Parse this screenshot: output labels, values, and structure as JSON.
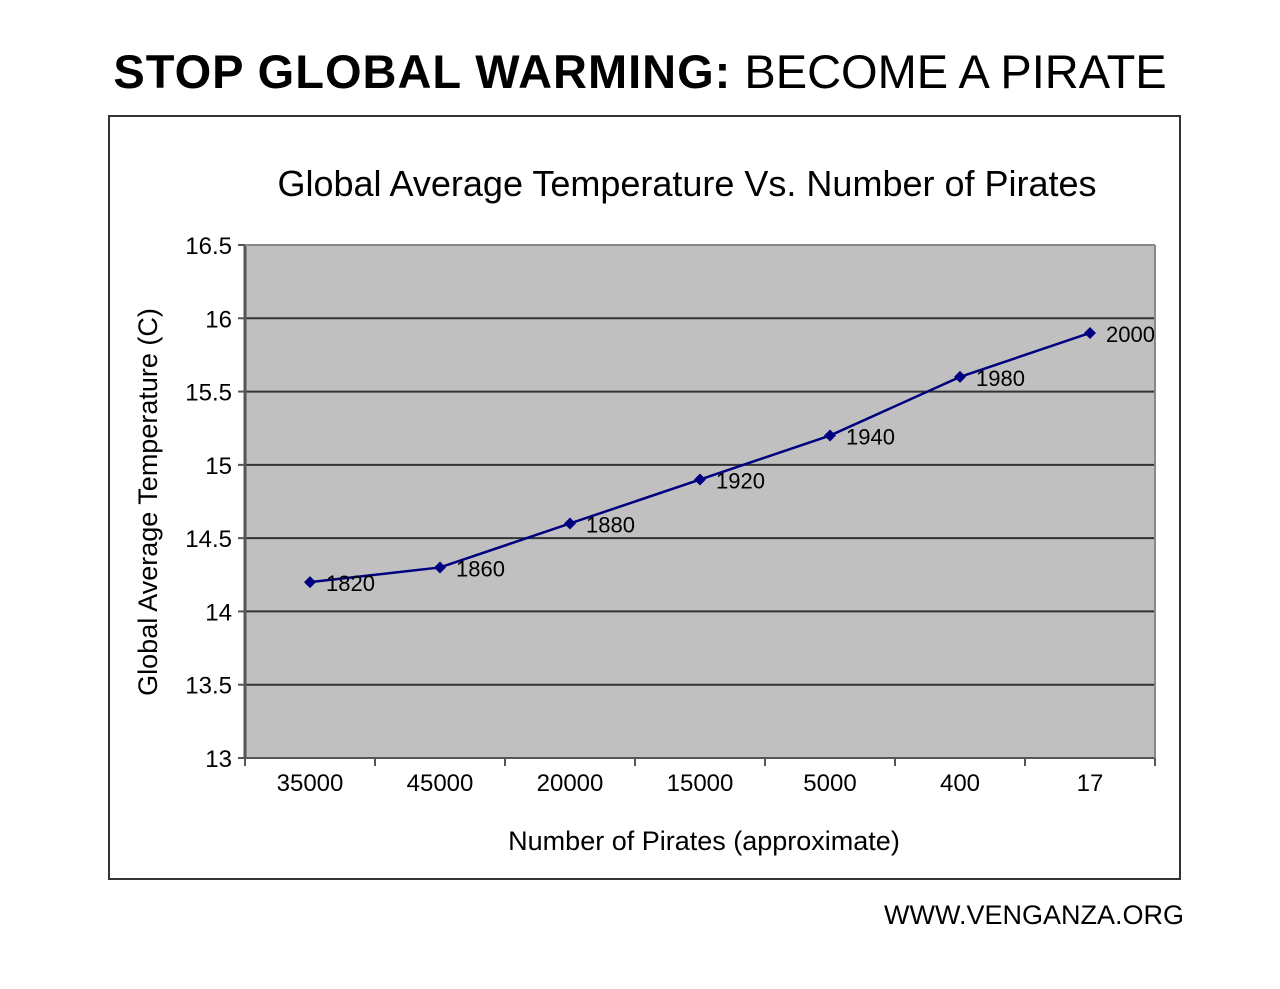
{
  "headline": {
    "bold": "STOP GLOBAL WARMING:",
    "regular": " BECOME A PIRATE"
  },
  "footer": "WWW.VENGANZA.ORG",
  "chart_data": {
    "type": "line",
    "title": "Global Average Temperature Vs. Number of Pirates",
    "xlabel": "Number of Pirates (approximate)",
    "ylabel": "Global Average Temperature (C)",
    "categories": [
      "35000",
      "45000",
      "20000",
      "15000",
      "5000",
      "400",
      "17"
    ],
    "point_labels": [
      "1820",
      "1860",
      "1880",
      "1920",
      "1940",
      "1980",
      "2000"
    ],
    "values": [
      14.2,
      14.3,
      14.6,
      14.9,
      15.2,
      15.6,
      15.9
    ],
    "ylim": [
      13,
      16.5
    ],
    "yticks": [
      "13",
      "13.5",
      "14",
      "14.5",
      "15",
      "15.5",
      "16",
      "16.5"
    ],
    "grid": true,
    "legend": "none",
    "colors": {
      "line": "#000080",
      "plot_bg": "#c0c0c0",
      "grid": "#333333"
    }
  }
}
